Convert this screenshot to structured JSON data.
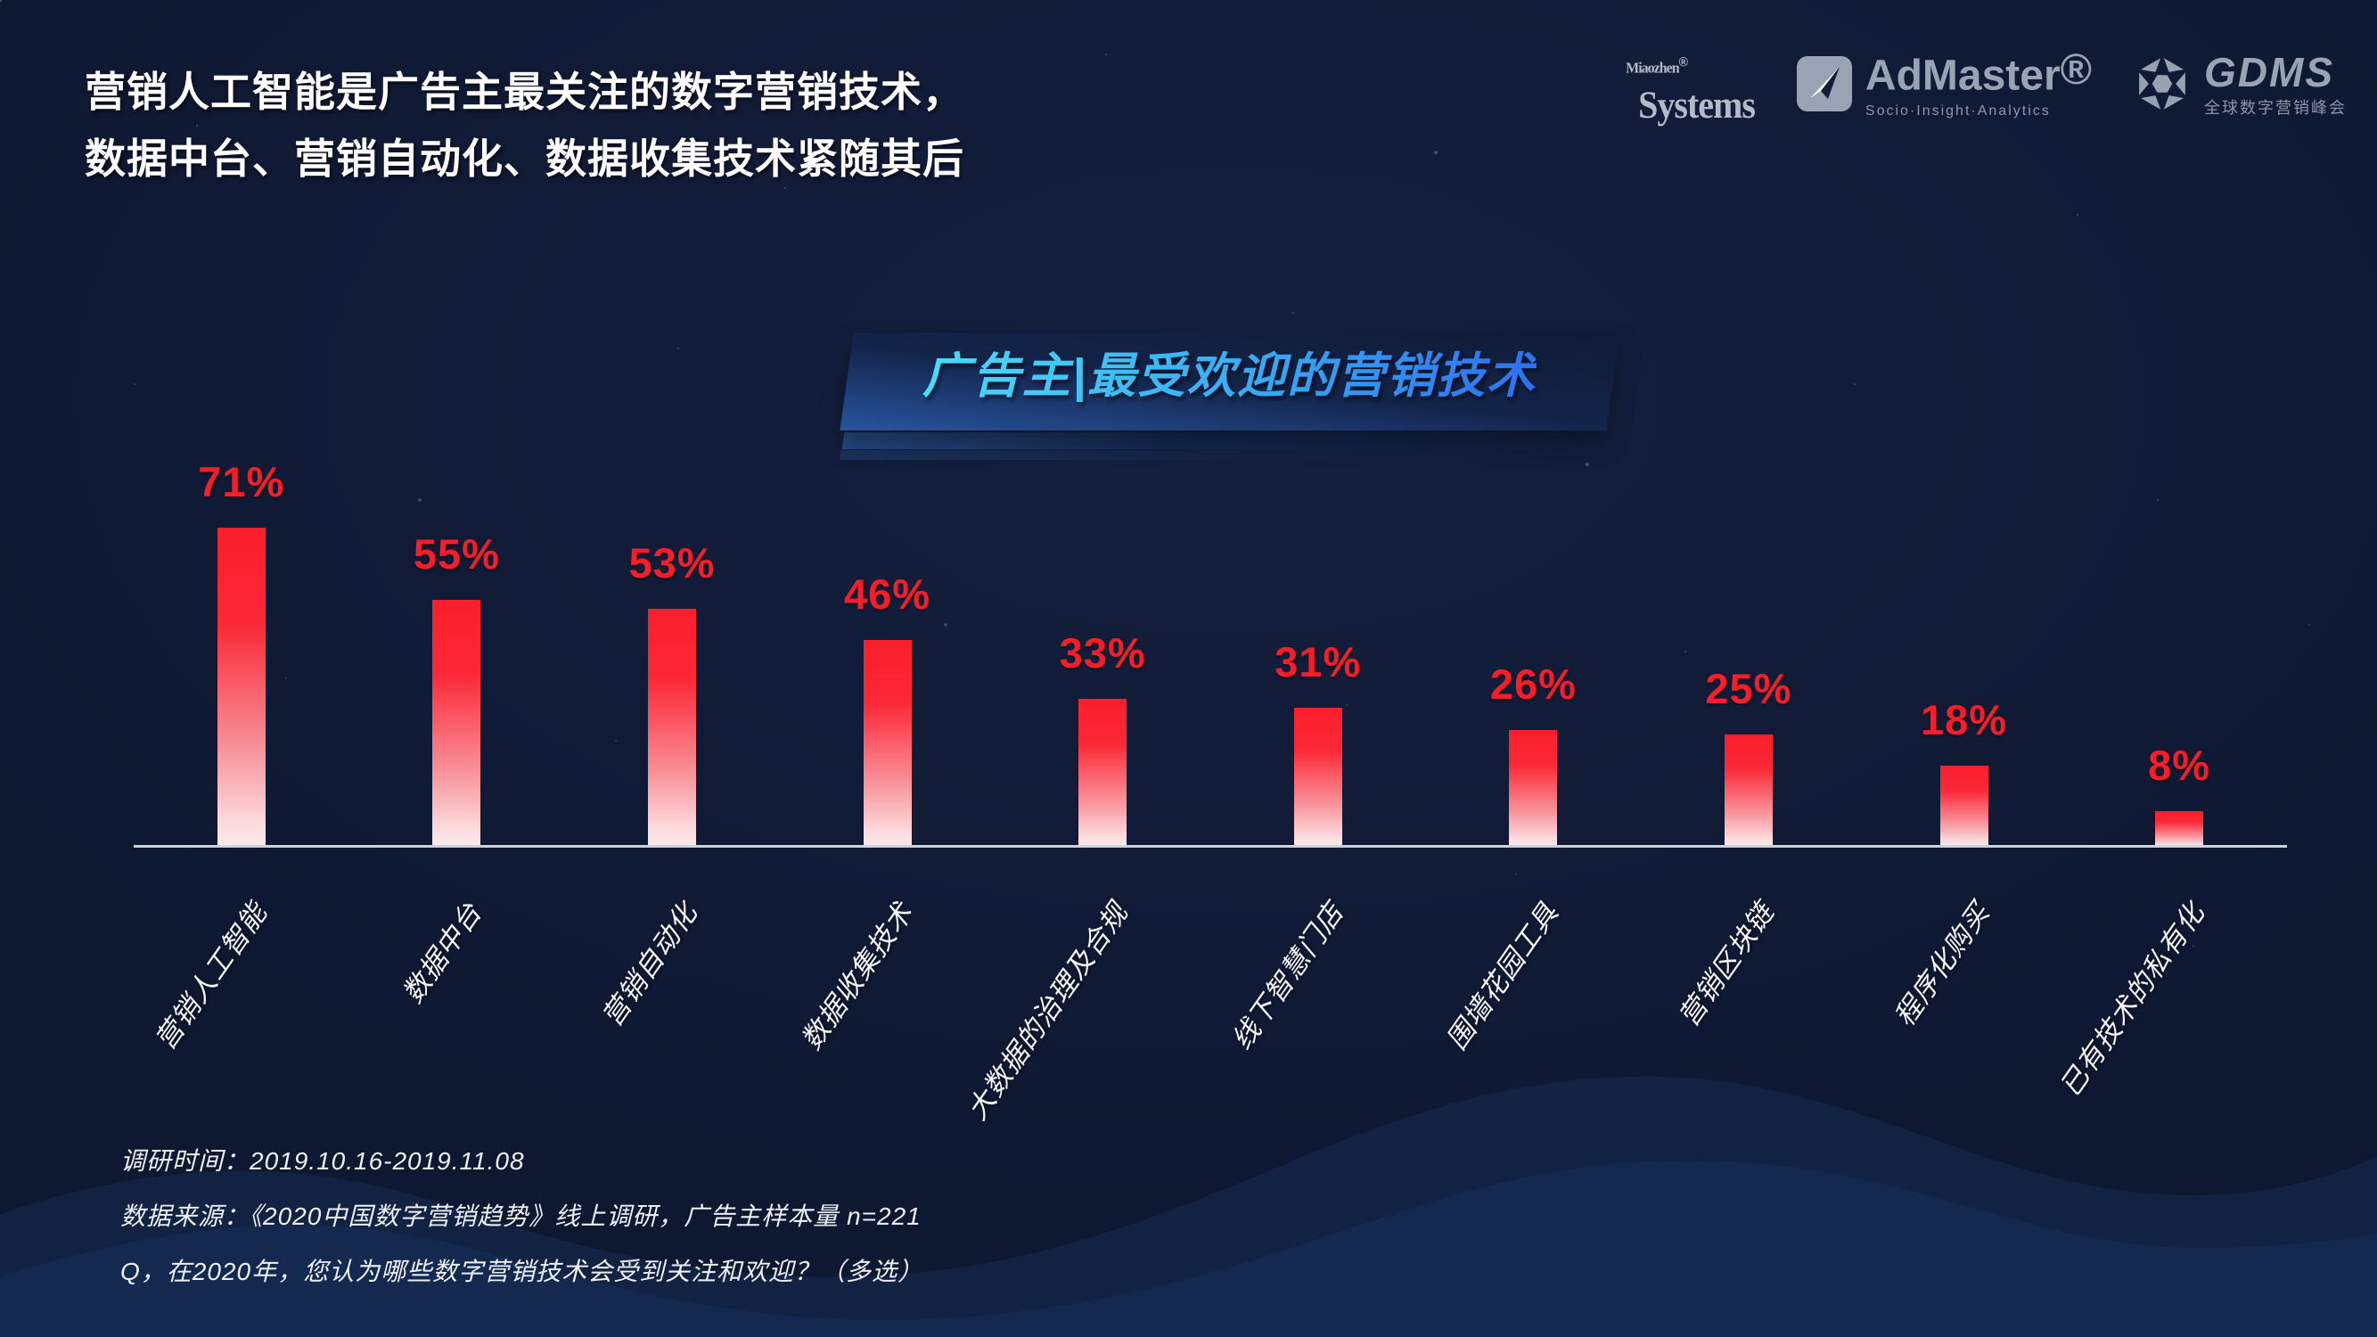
{
  "header": {
    "title_line1": "营销人工智能是广告主最关注的数字营销技术，",
    "title_line2": "数据中台、营销自动化、数据收集技术紧随其后"
  },
  "logos": {
    "miaozhen_line1": "Miaozhen",
    "miaozhen_reg": "®",
    "miaozhen_line2": "Systems",
    "admaster_name": "AdMaster",
    "admaster_reg": "®",
    "admaster_tagline": "Socio·Insight·Analytics",
    "gdms_name": "GDMS",
    "gdms_tagline": "全球数字营销峰会"
  },
  "chart_data": {
    "type": "bar",
    "title": "广告主|最受欢迎的营销技术",
    "categories": [
      "营销人工智能",
      "数据中台",
      "营销自动化",
      "数据收集技术",
      "大数据的治理及合规",
      "线下智慧门店",
      "围墙花园工具",
      "营销区块链",
      "程序化购买",
      "已有技术的私有化"
    ],
    "values": [
      71,
      55,
      53,
      46,
      33,
      31,
      26,
      25,
      18,
      8
    ],
    "labels": [
      "71%",
      "55%",
      "53%",
      "46%",
      "33%",
      "31%",
      "26%",
      "25%",
      "18%",
      "8%"
    ],
    "unit": "%",
    "ylim": [
      0,
      80
    ],
    "grid": false,
    "legend": "none",
    "bar_color_top": "#fb1e2c",
    "bar_color_bottom": "#fdeaea",
    "value_label_color": "#f91d29",
    "axis_line_color": "#ccd2dc",
    "background_color": "#121c38"
  },
  "footer": {
    "line1": "调研时间：2019.10.16-2019.11.08",
    "line2": "数据来源：《2020中国数字营销趋势》线上调研，广告主样本量 n=221",
    "line3": "Q，在2020年，您认为哪些数字营销技术会受到关注和欢迎？（多选）"
  }
}
